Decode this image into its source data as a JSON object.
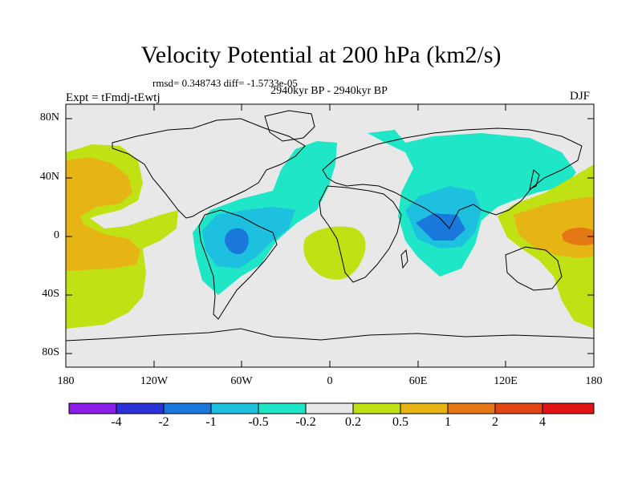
{
  "title": "Velocity Potential at 200 hPa (km2/s)",
  "rmsd_text": "rmsd= 0.348743 diff= -1.5733e-05",
  "period_text": "2940kyr BP - 2940kyr BP",
  "expt_text": "Expt = tFmdj-tEwtj",
  "season_text": "DJF",
  "lat_labels": [
    "80N",
    "40N",
    "0",
    "40S",
    "80S"
  ],
  "lon_labels": [
    "180",
    "120W",
    "60W",
    "0",
    "60E",
    "120E",
    "180"
  ],
  "colorbar": {
    "labels": [
      "-4",
      "-2",
      "-1",
      "-0.5",
      "-0.2",
      "0.2",
      "0.5",
      "1",
      "2",
      "4"
    ],
    "colors": [
      "#8a1ee6",
      "#2a32d8",
      "#1a78dc",
      "#1ec0e0",
      "#1ee6c6",
      "#e8e8e8",
      "#c0e214",
      "#e6b414",
      "#e47814",
      "#e04614",
      "#e01414"
    ]
  },
  "colors": {
    "ocean_bg": "#e8e8e8",
    "neg_light": "#1ee6c6",
    "neg_mid": "#1ec0e0",
    "neg_strong": "#1a78dc",
    "pos_light": "#c0e214",
    "pos_mid": "#e6b414",
    "pos_strong": "#e47814"
  }
}
